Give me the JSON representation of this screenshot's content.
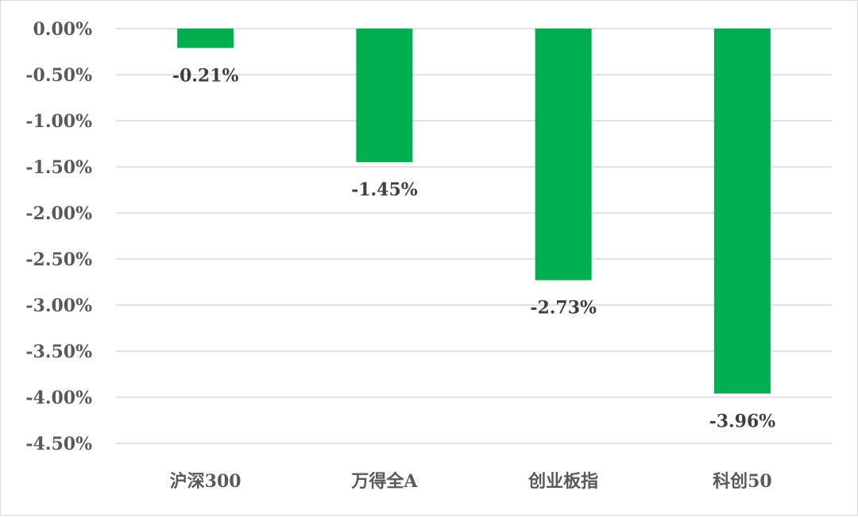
{
  "chart_data": {
    "type": "bar",
    "categories": [
      "沪深300",
      "万得全A",
      "创业板指",
      "科创50"
    ],
    "values": [
      -0.21,
      -1.45,
      -2.73,
      -3.96
    ],
    "data_labels": [
      "-0.21%",
      "-1.45%",
      "-2.73%",
      "-3.96%"
    ],
    "title": "",
    "xlabel": "",
    "ylabel": "",
    "ylim": [
      -4.5,
      0
    ],
    "yticks": [
      0,
      -0.5,
      -1,
      -1.5,
      -2,
      -2.5,
      -3,
      -3.5,
      -4,
      -4.5
    ],
    "ytick_labels": [
      "0.00%",
      "-0.50%",
      "-1.00%",
      "-1.50%",
      "-2.00%",
      "-2.50%",
      "-3.00%",
      "-3.50%",
      "-4.00%",
      "-4.50%"
    ],
    "grid": true,
    "legend": "none",
    "bar_color": "#00b050",
    "gridline_color": "#d9d9d9"
  }
}
